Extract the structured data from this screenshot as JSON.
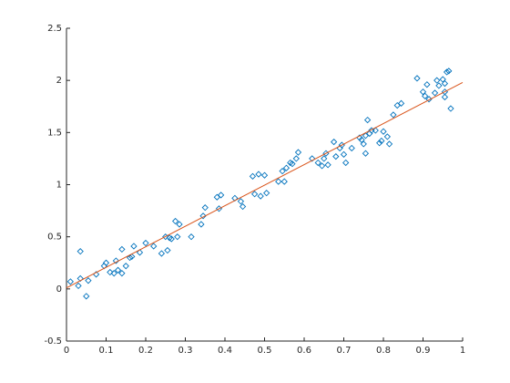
{
  "chart_data": {
    "type": "scatter",
    "xlim": [
      0,
      1
    ],
    "xticks": [
      0,
      0.1,
      0.2,
      0.3,
      0.4,
      0.5,
      0.6,
      0.7,
      0.8,
      0.9,
      1
    ],
    "ylim": [
      -0.5,
      2.5
    ],
    "yticks": [
      -0.5,
      0,
      0.5,
      1,
      1.5,
      2,
      2.5
    ],
    "grid": false,
    "series": [
      {
        "type": "scatter",
        "marker": "diamond",
        "color": "#0072bd",
        "x": [
          0.01,
          0.03,
          0.035,
          0.035,
          0.05,
          0.055,
          0.075,
          0.095,
          0.1,
          0.11,
          0.12,
          0.125,
          0.13,
          0.14,
          0.14,
          0.15,
          0.16,
          0.165,
          0.17,
          0.185,
          0.2,
          0.22,
          0.24,
          0.25,
          0.255,
          0.26,
          0.265,
          0.275,
          0.28,
          0.285,
          0.315,
          0.34,
          0.345,
          0.35,
          0.38,
          0.385,
          0.39,
          0.425,
          0.44,
          0.445,
          0.47,
          0.475,
          0.485,
          0.49,
          0.5,
          0.505,
          0.535,
          0.545,
          0.55,
          0.555,
          0.565,
          0.57,
          0.58,
          0.585,
          0.62,
          0.635,
          0.645,
          0.65,
          0.655,
          0.66,
          0.675,
          0.68,
          0.69,
          0.695,
          0.7,
          0.705,
          0.72,
          0.74,
          0.745,
          0.75,
          0.755,
          0.755,
          0.76,
          0.765,
          0.77,
          0.78,
          0.79,
          0.795,
          0.8,
          0.81,
          0.815,
          0.825,
          0.835,
          0.845,
          0.885,
          0.9,
          0.905,
          0.91,
          0.915,
          0.93,
          0.935,
          0.94,
          0.95,
          0.955,
          0.955,
          0.955,
          0.96,
          0.965,
          0.97
        ],
        "values": [
          0.07,
          0.03,
          0.36,
          0.1,
          -0.07,
          0.08,
          0.14,
          0.22,
          0.25,
          0.16,
          0.15,
          0.27,
          0.18,
          0.38,
          0.15,
          0.22,
          0.3,
          0.31,
          0.41,
          0.35,
          0.44,
          0.41,
          0.34,
          0.5,
          0.37,
          0.49,
          0.48,
          0.65,
          0.5,
          0.62,
          0.5,
          0.62,
          0.7,
          0.78,
          0.88,
          0.77,
          0.9,
          0.87,
          0.84,
          0.79,
          1.08,
          0.91,
          1.1,
          0.89,
          1.09,
          0.92,
          1.03,
          1.13,
          1.03,
          1.16,
          1.21,
          1.2,
          1.25,
          1.31,
          1.25,
          1.21,
          1.18,
          1.25,
          1.3,
          1.19,
          1.41,
          1.27,
          1.35,
          1.38,
          1.29,
          1.21,
          1.35,
          1.45,
          1.43,
          1.39,
          1.47,
          1.3,
          1.62,
          1.49,
          1.52,
          1.52,
          1.4,
          1.42,
          1.51,
          1.46,
          1.39,
          1.67,
          1.76,
          1.78,
          2.02,
          1.89,
          1.85,
          1.96,
          1.82,
          1.88,
          2.0,
          1.95,
          2.01,
          1.97,
          1.89,
          1.84,
          2.08,
          2.09,
          1.73
        ]
      },
      {
        "type": "line",
        "color": "#d95319",
        "x": [
          0,
          1
        ],
        "values": [
          0.01,
          1.98
        ]
      }
    ]
  }
}
